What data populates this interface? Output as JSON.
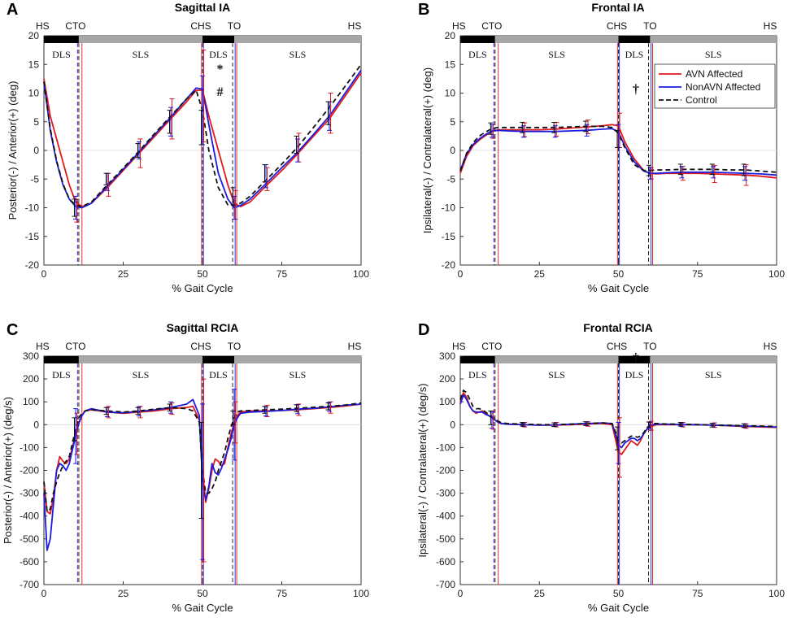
{
  "colors": {
    "avn": "#e0191c",
    "nonavn": "#1c1ce0",
    "control": "#111111",
    "bar_dark": "#000000",
    "bar_light": "#a6a6a6"
  },
  "legend": {
    "avn": "AVN Affected",
    "nonavn": "NonAVN Affected",
    "control": "Control"
  },
  "phase_labels": {
    "hs": "HS",
    "cto": "CTO",
    "chs": "CHS",
    "to": "TO",
    "dls": "DLS",
    "sls": "SLS"
  },
  "chart_data": [
    {
      "id": "A",
      "type": "line",
      "letter": "A",
      "title": "Sagittal IA",
      "xlabel": "% Gait Cycle",
      "ylabel": "Posterior(-) / Anterior(+) (deg)",
      "xlim": [
        0,
        100
      ],
      "ylim": [
        -20,
        20
      ],
      "xticks": [
        0,
        25,
        50,
        75,
        100
      ],
      "yticks": [
        -20,
        -15,
        -10,
        -5,
        0,
        5,
        10,
        15,
        20
      ],
      "events": {
        "cto": 11,
        "chs": 50,
        "to": 60
      },
      "annotations": [
        {
          "text": "*",
          "x": 55.5,
          "y": 13.5
        },
        {
          "text": "#",
          "x": 55.5,
          "y": 9.5
        }
      ],
      "x": [
        0,
        2,
        4,
        6,
        8,
        10,
        12,
        15,
        20,
        25,
        30,
        35,
        40,
        45,
        48,
        50,
        52,
        55,
        58,
        60,
        62,
        65,
        70,
        75,
        80,
        85,
        90,
        95,
        100
      ],
      "series": [
        {
          "name": "AVN Affected",
          "values": [
            12.5,
            6,
            2,
            -2,
            -6,
            -9,
            -9.8,
            -9.2,
            -6.5,
            -3.5,
            -0.5,
            2.5,
            5.5,
            8.5,
            10.5,
            10.5,
            6,
            0,
            -6,
            -9.2,
            -9.8,
            -9,
            -6.2,
            -3.5,
            -0.6,
            2.5,
            5.5,
            9.5,
            13.5
          ]
        },
        {
          "name": "NonAVN Affected",
          "values": [
            12,
            3.5,
            -2,
            -6,
            -8.5,
            -9.8,
            -10,
            -9.2,
            -6.2,
            -3.3,
            -0.3,
            2.8,
            5.8,
            9,
            10.9,
            10.7,
            4.5,
            -4,
            -8.5,
            -10,
            -9.6,
            -8.5,
            -5.8,
            -3,
            -0.3,
            2.8,
            6,
            10,
            14
          ]
        },
        {
          "name": "Control",
          "values": [
            12,
            3.8,
            -1.8,
            -5.8,
            -8.5,
            -9.5,
            -9.8,
            -9,
            -6,
            -3.1,
            -0.1,
            3,
            6,
            9,
            10.5,
            7,
            0,
            -6.5,
            -9.5,
            -9.6,
            -9.2,
            -8,
            -5.2,
            -2.4,
            0.6,
            4,
            7.5,
            11.2,
            15
          ]
        }
      ],
      "errorbars": {
        "x": [
          10,
          20,
          30,
          40,
          50,
          60,
          70,
          80,
          90
        ],
        "AVN Affected": {
          "values": [
            -10.5,
            -6,
            -0.5,
            5.5,
            9.5,
            -9.5,
            -5,
            0.5,
            6.5
          ],
          "err": [
            2,
            2,
            2.5,
            3.5,
            8,
            2.5,
            2,
            2.5,
            3.5
          ]
        },
        "NonAVN Affected": {
          "values": [
            -10,
            -5.5,
            0,
            5,
            7,
            -10,
            -4.5,
            0,
            6
          ],
          "err": [
            2,
            1.5,
            1.5,
            2.5,
            6,
            2,
            2,
            2,
            2.5
          ]
        },
        "Control": {
          "values": [
            -10,
            -5,
            0,
            5,
            4,
            -8,
            -4,
            1,
            6.5
          ],
          "err": [
            1.5,
            1,
            1.2,
            2,
            3,
            1.5,
            1.5,
            1.5,
            2
          ]
        }
      }
    },
    {
      "id": "B",
      "type": "line",
      "letter": "B",
      "title": "Frontal IA",
      "xlabel": "% Gait Cycle",
      "ylabel": "Ipsilateral(-) / Contralateral(+) (deg)",
      "xlim": [
        0,
        100
      ],
      "ylim": [
        -20,
        20
      ],
      "xticks": [
        0,
        25,
        50,
        75,
        100
      ],
      "yticks": [
        -20,
        -15,
        -10,
        -5,
        0,
        5,
        10,
        15,
        20
      ],
      "events": {
        "cto": 11,
        "chs": 50,
        "to": 60
      },
      "annotations": [
        {
          "text": "†",
          "x": 55.5,
          "y": 10
        }
      ],
      "legend_position": "top-right",
      "x": [
        0,
        2,
        4,
        6,
        8,
        10,
        12,
        15,
        20,
        25,
        30,
        35,
        40,
        45,
        48,
        50,
        52,
        55,
        58,
        60,
        62,
        65,
        70,
        75,
        80,
        85,
        90,
        95,
        100
      ],
      "series": [
        {
          "name": "AVN Affected",
          "values": [
            -4,
            -1,
            0.8,
            1.8,
            2.6,
            3.3,
            3.6,
            3.6,
            3.6,
            3.6,
            3.7,
            3.9,
            4.1,
            4.3,
            4.5,
            4.3,
            1.5,
            -1.5,
            -3.5,
            -4,
            -4.1,
            -4,
            -4,
            -4,
            -4.1,
            -4.2,
            -4.3,
            -4.5,
            -4.8
          ]
        },
        {
          "name": "NonAVN Affected",
          "values": [
            -3.5,
            -0.6,
            1,
            2,
            2.8,
            3.4,
            3.5,
            3.4,
            3.3,
            3.3,
            3.3,
            3.4,
            3.5,
            3.7,
            3.8,
            3.2,
            0.8,
            -2,
            -3.6,
            -4,
            -4,
            -3.9,
            -3.8,
            -3.8,
            -3.8,
            -3.9,
            -4,
            -4.1,
            -4.3
          ]
        },
        {
          "name": "Control",
          "values": [
            -3.6,
            -0.5,
            1.3,
            2.5,
            3.2,
            3.8,
            4,
            4,
            4,
            4,
            4,
            4.1,
            4.2,
            4.2,
            4,
            3,
            0.5,
            -2.5,
            -3.5,
            -3.5,
            -3.4,
            -3.4,
            -3.3,
            -3.3,
            -3.3,
            -3.4,
            -3.4,
            -3.6,
            -3.8
          ]
        }
      ],
      "errorbars": {
        "x": [
          10,
          20,
          30,
          40,
          50,
          60,
          70,
          80,
          90
        ],
        "AVN Affected": {
          "values": [
            3.3,
            3.6,
            3.7,
            4.1,
            3.5,
            -4,
            -4,
            -4.1,
            -4.3
          ],
          "err": [
            1.2,
            1.2,
            1.2,
            1.2,
            3,
            1,
            1.2,
            1.5,
            1.8
          ]
        },
        "NonAVN Affected": {
          "values": [
            3.4,
            3.3,
            3.3,
            3.5,
            2.5,
            -4,
            -3.8,
            -3.8,
            -4
          ],
          "err": [
            1.1,
            1,
            1,
            1,
            2,
            1,
            1,
            1,
            1.2
          ]
        },
        "Control": {
          "values": [
            3.8,
            4,
            4,
            4.2,
            2,
            -3.5,
            -3.3,
            -3.3,
            -3.4
          ],
          "err": [
            1,
            0.9,
            0.9,
            0.9,
            1.5,
            0.9,
            0.9,
            0.9,
            1
          ]
        }
      }
    },
    {
      "id": "C",
      "type": "line",
      "letter": "C",
      "title": "Sagittal RCIA",
      "xlabel": "% Gait Cycle",
      "ylabel": "Posterior(-) / Anterior(+) (deg/s)",
      "xlim": [
        0,
        100
      ],
      "ylim": [
        -700,
        300
      ],
      "xticks": [
        0,
        25,
        50,
        75,
        100
      ],
      "yticks": [
        -700,
        -600,
        -500,
        -400,
        -300,
        -200,
        -100,
        0,
        100,
        200,
        300
      ],
      "events": {
        "cto": 11,
        "chs": 50,
        "to": 60
      },
      "annotations": [],
      "x": [
        0,
        1,
        2,
        3,
        4,
        5,
        6,
        7,
        8,
        9,
        10,
        11,
        12,
        13,
        15,
        20,
        25,
        30,
        35,
        40,
        45,
        47,
        49,
        50,
        51,
        52,
        53,
        54,
        55,
        56,
        57,
        58,
        59,
        60,
        61,
        62,
        65,
        70,
        75,
        80,
        85,
        90,
        95,
        100
      ],
      "series": [
        {
          "name": "AVN Affected",
          "values": [
            -250,
            -380,
            -390,
            -320,
            -200,
            -140,
            -160,
            -170,
            -150,
            -100,
            -40,
            10,
            40,
            60,
            65,
            55,
            50,
            55,
            60,
            70,
            75,
            80,
            20,
            -200,
            -340,
            -280,
            -200,
            -150,
            -160,
            -180,
            -170,
            -100,
            -40,
            10,
            40,
            55,
            60,
            60,
            62,
            65,
            70,
            75,
            82,
            90
          ]
        },
        {
          "name": "NonAVN Affected",
          "values": [
            -300,
            -550,
            -500,
            -350,
            -200,
            -170,
            -180,
            -200,
            -170,
            -110,
            -50,
            5,
            40,
            60,
            70,
            55,
            52,
            58,
            65,
            75,
            90,
            110,
            40,
            -250,
            -330,
            -270,
            -170,
            -210,
            -220,
            -190,
            -150,
            -110,
            -60,
            0,
            30,
            50,
            55,
            58,
            62,
            68,
            72,
            78,
            85,
            90
          ]
        },
        {
          "name": "Control",
          "values": [
            -250,
            -380,
            -370,
            -300,
            -250,
            -210,
            -180,
            -160,
            -140,
            -80,
            -20,
            30,
            50,
            60,
            65,
            60,
            55,
            60,
            68,
            75,
            70,
            60,
            10,
            -200,
            -300,
            -300,
            -280,
            -250,
            -200,
            -160,
            -120,
            -60,
            -10,
            30,
            55,
            60,
            62,
            65,
            68,
            72,
            76,
            80,
            86,
            95
          ]
        }
      ],
      "errorbars": {
        "x": [
          10,
          20,
          30,
          40,
          50,
          60,
          70,
          80,
          90
        ],
        "AVN Affected": {
          "values": [
            -40,
            55,
            55,
            70,
            -200,
            10,
            60,
            65,
            75
          ],
          "err": [
            90,
            25,
            25,
            25,
            400,
            90,
            25,
            25,
            25
          ]
        },
        "NonAVN Affected": {
          "values": [
            -50,
            55,
            58,
            75,
            -250,
            0,
            58,
            68,
            78
          ],
          "err": [
            120,
            20,
            20,
            25,
            340,
            155,
            20,
            20,
            20
          ]
        },
        "Control": {
          "values": [
            -20,
            60,
            60,
            75,
            -200,
            30,
            65,
            72,
            80
          ],
          "err": [
            50,
            15,
            15,
            15,
            210,
            30,
            15,
            15,
            15
          ]
        }
      }
    },
    {
      "id": "D",
      "type": "line",
      "letter": "D",
      "title": "Frontal RCIA",
      "xlabel": "% Gait Cycle",
      "ylabel": "Ipsilateral(-) / Contralateral(+) (deg/s)",
      "xlim": [
        0,
        100
      ],
      "ylim": [
        -700,
        300
      ],
      "xticks": [
        0,
        25,
        50,
        75,
        100
      ],
      "yticks": [
        -700,
        -600,
        -500,
        -400,
        -300,
        -200,
        -100,
        0,
        100,
        200,
        300
      ],
      "events": {
        "cto": 11,
        "chs": 50,
        "to": 60
      },
      "annotations": [
        {
          "text": "†",
          "x": 55.5,
          "y": 275
        }
      ],
      "x": [
        0,
        1,
        2,
        3,
        4,
        5,
        6,
        7,
        8,
        9,
        10,
        11,
        12,
        13,
        15,
        20,
        25,
        30,
        35,
        40,
        45,
        48,
        49,
        50,
        51,
        52,
        53,
        54,
        55,
        56,
        57,
        58,
        59,
        60,
        61,
        62,
        65,
        70,
        75,
        80,
        85,
        90,
        95,
        100
      ],
      "series": [
        {
          "name": "AVN Affected",
          "values": [
            100,
            140,
            120,
            80,
            60,
            50,
            55,
            60,
            50,
            40,
            30,
            20,
            10,
            5,
            2,
            0,
            -2,
            -2,
            0,
            3,
            5,
            0,
            -60,
            -120,
            -130,
            -110,
            -90,
            -70,
            -80,
            -90,
            -70,
            -40,
            -20,
            -10,
            -5,
            0,
            0,
            0,
            0,
            -2,
            -5,
            -8,
            -10,
            -12
          ]
        },
        {
          "name": "NonAVN Affected",
          "values": [
            90,
            130,
            110,
            80,
            60,
            55,
            55,
            55,
            45,
            40,
            30,
            20,
            10,
            5,
            2,
            0,
            -2,
            -1,
            2,
            5,
            8,
            5,
            -40,
            -90,
            -100,
            -80,
            -70,
            -60,
            -60,
            -70,
            -60,
            -40,
            -20,
            -5,
            0,
            2,
            2,
            0,
            0,
            -2,
            -4,
            -6,
            -8,
            -10
          ]
        },
        {
          "name": "Control",
          "values": [
            110,
            150,
            140,
            110,
            80,
            70,
            70,
            65,
            55,
            45,
            35,
            25,
            15,
            8,
            5,
            2,
            0,
            0,
            2,
            5,
            8,
            5,
            -30,
            -70,
            -80,
            -70,
            -60,
            -50,
            -50,
            -55,
            -50,
            -35,
            -15,
            0,
            5,
            5,
            3,
            2,
            0,
            -2,
            -3,
            -5,
            -6,
            -8
          ]
        }
      ],
      "errorbars": {
        "x": [
          10,
          20,
          30,
          40,
          50,
          60,
          70,
          80,
          90
        ],
        "AVN Affected": {
          "values": [
            20,
            0,
            0,
            3,
            -100,
            -5,
            0,
            -2,
            -6
          ],
          "err": [
            40,
            10,
            10,
            10,
            130,
            20,
            10,
            10,
            10
          ]
        },
        "NonAVN Affected": {
          "values": [
            20,
            0,
            0,
            4,
            -80,
            -5,
            0,
            -2,
            -5
          ],
          "err": [
            35,
            8,
            8,
            8,
            90,
            15,
            8,
            8,
            8
          ]
        },
        "Control": {
          "values": [
            30,
            2,
            0,
            5,
            -60,
            0,
            2,
            -2,
            -4
          ],
          "err": [
            30,
            8,
            8,
            8,
            50,
            12,
            8,
            8,
            8
          ]
        }
      }
    }
  ]
}
